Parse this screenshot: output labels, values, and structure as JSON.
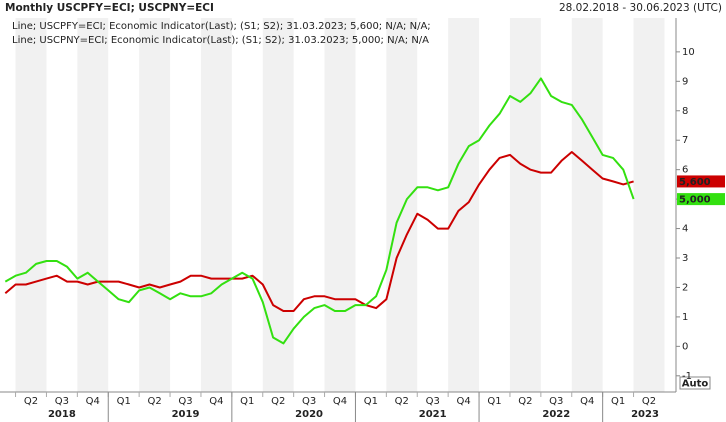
{
  "chart_data": {
    "type": "line",
    "title": "Monthly USCPFY=ECI; USCPNY=ECI",
    "date_range": "28.02.2018 - 30.06.2023 (UTC)",
    "x": [
      "2018-02",
      "2018-03",
      "2018-04",
      "2018-05",
      "2018-06",
      "2018-07",
      "2018-08",
      "2018-09",
      "2018-10",
      "2018-11",
      "2018-12",
      "2019-01",
      "2019-02",
      "2019-03",
      "2019-04",
      "2019-05",
      "2019-06",
      "2019-07",
      "2019-08",
      "2019-09",
      "2019-10",
      "2019-11",
      "2019-12",
      "2020-01",
      "2020-02",
      "2020-03",
      "2020-04",
      "2020-05",
      "2020-06",
      "2020-07",
      "2020-08",
      "2020-09",
      "2020-10",
      "2020-11",
      "2020-12",
      "2021-01",
      "2021-02",
      "2021-03",
      "2021-04",
      "2021-05",
      "2021-06",
      "2021-07",
      "2021-08",
      "2021-09",
      "2021-10",
      "2021-11",
      "2021-12",
      "2022-01",
      "2022-02",
      "2022-03",
      "2022-04",
      "2022-05",
      "2022-06",
      "2022-07",
      "2022-08",
      "2022-09",
      "2022-10",
      "2022-11",
      "2022-12",
      "2023-01",
      "2023-02",
      "2023-03"
    ],
    "series": [
      {
        "name": "USCPFY=ECI",
        "color": "#cc0000",
        "legend": "Line; USCPFY=ECI; Economic Indicator(Last); (S1; S2); 31.03.2023; 5,600; N/A; N/A;",
        "last_value_label": "5,600",
        "values": [
          1.8,
          2.1,
          2.1,
          2.2,
          2.3,
          2.4,
          2.2,
          2.2,
          2.1,
          2.2,
          2.2,
          2.2,
          2.1,
          2.0,
          2.1,
          2.0,
          2.1,
          2.2,
          2.4,
          2.4,
          2.3,
          2.3,
          2.3,
          2.3,
          2.4,
          2.1,
          1.4,
          1.2,
          1.2,
          1.6,
          1.7,
          1.7,
          1.6,
          1.6,
          1.6,
          1.4,
          1.3,
          1.6,
          3.0,
          3.8,
          4.5,
          4.3,
          4.0,
          4.0,
          4.6,
          4.9,
          5.5,
          6.0,
          6.4,
          6.5,
          6.2,
          6.0,
          5.9,
          5.9,
          6.3,
          6.6,
          6.3,
          6.0,
          5.7,
          5.6,
          5.5,
          5.6
        ]
      },
      {
        "name": "USCPNY=ECI",
        "color": "#33e010",
        "legend": "Line; USCPNY=ECI; Economic Indicator(Last); (S1; S2); 31.03.2023; 5,000; N/A; N/A",
        "last_value_label": "5,000",
        "values": [
          2.2,
          2.4,
          2.5,
          2.8,
          2.9,
          2.9,
          2.7,
          2.3,
          2.5,
          2.2,
          1.9,
          1.6,
          1.5,
          1.9,
          2.0,
          1.8,
          1.6,
          1.8,
          1.7,
          1.7,
          1.8,
          2.1,
          2.3,
          2.5,
          2.3,
          1.5,
          0.3,
          0.1,
          0.6,
          1.0,
          1.3,
          1.4,
          1.2,
          1.2,
          1.4,
          1.4,
          1.7,
          2.6,
          4.2,
          5.0,
          5.4,
          5.4,
          5.3,
          5.4,
          6.2,
          6.8,
          7.0,
          7.5,
          7.9,
          8.5,
          8.3,
          8.6,
          9.1,
          8.5,
          8.3,
          8.2,
          7.7,
          7.1,
          6.5,
          6.4,
          6.0,
          5.0
        ]
      }
    ],
    "ylim": [
      -1.55,
      11.15
    ],
    "yticks": [
      -1,
      0,
      1,
      2,
      3,
      4,
      5,
      6,
      7,
      8,
      9,
      10
    ],
    "quarter_labels": [
      "Q2",
      "Q3",
      "Q4",
      "Q1",
      "Q2",
      "Q3",
      "Q4",
      "Q1",
      "Q2",
      "Q3",
      "Q4",
      "Q1",
      "Q2",
      "Q3",
      "Q4",
      "Q1",
      "Q2",
      "Q3",
      "Q4",
      "Q1",
      "Q2"
    ],
    "year_labels": [
      "2018",
      "2019",
      "2020",
      "2021",
      "2022",
      "2023"
    ],
    "scale_mode": "Auto",
    "grid": false
  }
}
